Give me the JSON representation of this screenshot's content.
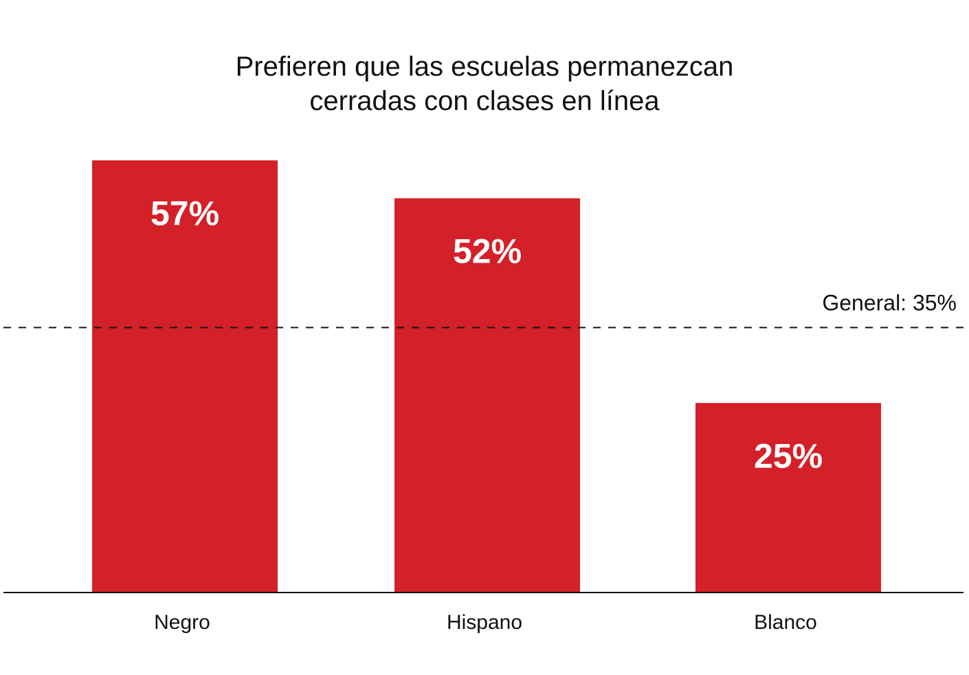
{
  "chart_data": {
    "type": "bar",
    "title_lines": [
      "Prefieren que las escuelas permanezcan",
      "cerradas con clases en línea"
    ],
    "categories": [
      "Negro",
      "Hispano",
      "Blanco"
    ],
    "values": [
      57,
      52,
      25
    ],
    "value_labels": [
      "57%",
      "52%",
      "25%"
    ],
    "reference_line": {
      "value": 35,
      "label": "General: 35%",
      "style": "dashed"
    },
    "ylim": [
      0,
      100
    ],
    "grid": false,
    "legend": "none",
    "bar_color": "#d42028",
    "value_label_color": "#ffffff"
  }
}
